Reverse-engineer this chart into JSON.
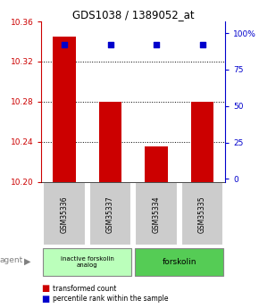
{
  "title": "GDS1038 / 1389052_at",
  "samples": [
    "GSM35336",
    "GSM35337",
    "GSM35334",
    "GSM35335"
  ],
  "bar_values": [
    10.345,
    10.28,
    10.235,
    10.28
  ],
  "percentile_values": [
    92,
    92,
    92,
    92
  ],
  "ymin": 10.2,
  "ymax": 10.36,
  "yticks": [
    10.2,
    10.24,
    10.28,
    10.32,
    10.36
  ],
  "y2ticks": [
    0,
    25,
    50,
    75,
    100
  ],
  "bar_color": "#cc0000",
  "dot_color": "#0000cc",
  "agent_label_0": "inactive forskolin\nanalog",
  "agent_label_1": "forskolin",
  "light_green": "#bbffbb",
  "green": "#55cc55",
  "sample_box_color": "#cccccc",
  "legend_red": "transformed count",
  "legend_blue": "percentile rank within the sample",
  "bar_width": 0.5
}
